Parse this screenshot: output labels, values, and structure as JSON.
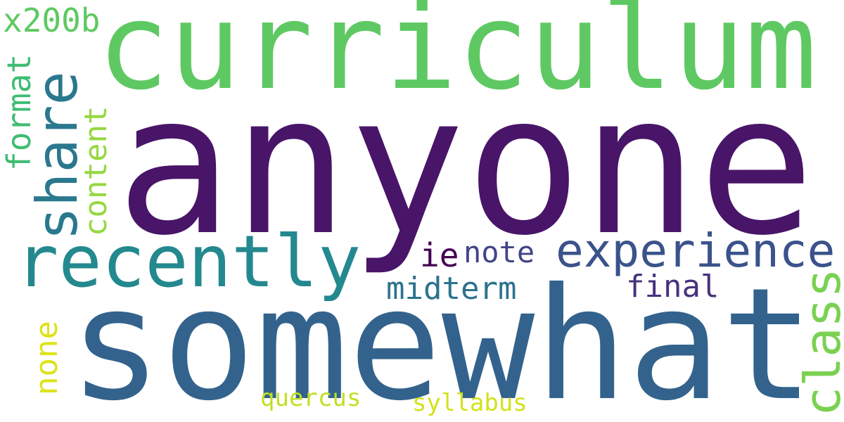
{
  "words": {
    "anyone": {
      "text": "anyone",
      "color": "#481568"
    },
    "somewhat": {
      "text": "somewhat",
      "color": "#33638d"
    },
    "curriculum": {
      "text": "curriculum",
      "color": "#5ec962"
    },
    "share": {
      "text": "share",
      "color": "#2a788e"
    },
    "recently": {
      "text": "recently",
      "color": "#23898e"
    },
    "experience": {
      "text": "experience",
      "color": "#3b528b"
    },
    "class": {
      "text": "class",
      "color": "#7ad151"
    },
    "x200b": {
      "text": "x200b",
      "color": "#5ec962"
    },
    "format": {
      "text": "format",
      "color": "#3fbc73"
    },
    "content": {
      "text": "content",
      "color": "#95d840"
    },
    "ie": {
      "text": "ie",
      "color": "#440154"
    },
    "note": {
      "text": "note",
      "color": "#414487"
    },
    "midterm": {
      "text": "midterm",
      "color": "#2c728e"
    },
    "final": {
      "text": "final",
      "color": "#46327e"
    },
    "none": {
      "text": "none",
      "color": "#dde318"
    },
    "quercus": {
      "text": "quercus",
      "color": "#c2df23"
    },
    "syllabus": {
      "text": "syllabus",
      "color": "#d2e21b"
    }
  }
}
